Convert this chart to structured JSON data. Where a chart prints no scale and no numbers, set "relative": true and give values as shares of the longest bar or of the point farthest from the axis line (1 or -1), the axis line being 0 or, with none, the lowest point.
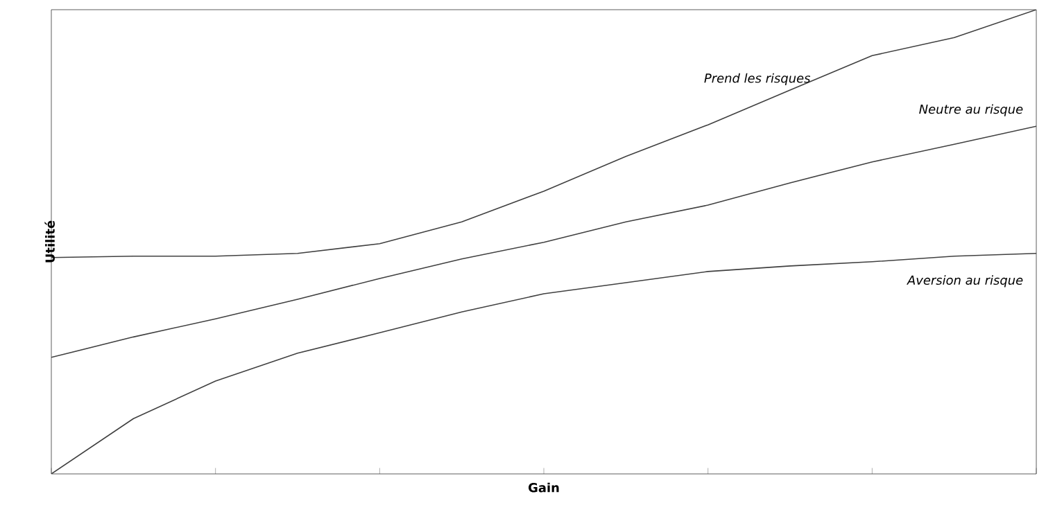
{
  "chart_data": {
    "type": "line",
    "xlabel": "Gain",
    "ylabel": "Utilité",
    "relative": true,
    "tick_labels": false,
    "grid": false,
    "marker": "none",
    "line_style": "solid",
    "categories": [
      null,
      null,
      null,
      null,
      null,
      null,
      null,
      null,
      null,
      null,
      null,
      null,
      null
    ],
    "series": [
      {
        "name": "Prend les risques",
        "color": "#404040",
        "values": [
          0.466,
          0.469,
          0.469,
          0.475,
          0.496,
          0.543,
          0.609,
          0.684,
          0.752,
          0.827,
          0.901,
          0.94,
          1.0
        ]
      },
      {
        "name": "Neutre au risque",
        "color": "#404040",
        "values": [
          0.251,
          0.295,
          0.334,
          0.376,
          0.421,
          0.463,
          0.499,
          0.543,
          0.579,
          0.627,
          0.672,
          0.71,
          0.749
        ]
      },
      {
        "name": "Aversion au risque",
        "color": "#404040",
        "values": [
          0,
          0.119,
          0.2,
          0.26,
          0.304,
          0.349,
          0.388,
          0.412,
          0.436,
          0.448,
          0.457,
          0.469,
          0.475
        ]
      }
    ]
  }
}
